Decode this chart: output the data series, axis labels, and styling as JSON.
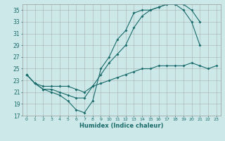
{
  "title": "",
  "xlabel": "Humidex (Indice chaleur)",
  "bg_color": "#cce8e8",
  "grid_color": "#999999",
  "line_color": "#1a6b6b",
  "xlim": [
    -0.5,
    23.5
  ],
  "ylim": [
    17,
    36
  ],
  "xticks": [
    0,
    1,
    2,
    3,
    4,
    5,
    6,
    7,
    8,
    9,
    10,
    11,
    12,
    13,
    14,
    15,
    16,
    17,
    18,
    19,
    20,
    21,
    22,
    23
  ],
  "yticks": [
    17,
    19,
    21,
    23,
    25,
    27,
    29,
    31,
    33,
    35
  ],
  "line1_x": [
    0,
    1,
    2,
    3,
    4,
    5,
    6,
    7,
    8,
    9,
    10,
    11,
    12,
    13,
    14,
    15,
    16,
    17,
    18,
    19,
    20,
    21
  ],
  "line1_y": [
    24,
    22.5,
    21.5,
    21,
    20.5,
    19.5,
    18,
    17.5,
    19.5,
    25,
    27,
    30,
    31.5,
    34.5,
    35,
    35,
    35.5,
    36,
    36,
    35,
    33,
    29
  ],
  "line2_x": [
    0,
    1,
    2,
    3,
    4,
    5,
    6,
    7,
    8,
    9,
    10,
    11,
    12,
    13,
    14,
    15,
    16,
    17,
    18,
    19,
    20,
    21
  ],
  "line2_y": [
    24,
    22.5,
    21.5,
    21.5,
    21,
    20.5,
    20,
    20,
    22,
    24,
    26,
    27.5,
    29,
    32,
    34,
    35,
    35.5,
    36,
    36,
    36,
    35,
    33
  ],
  "line3_x": [
    0,
    1,
    2,
    3,
    4,
    5,
    6,
    7,
    8,
    9,
    10,
    11,
    12,
    13,
    14,
    15,
    16,
    17,
    18,
    19,
    20,
    21,
    22,
    23
  ],
  "line3_y": [
    24,
    22.5,
    22,
    22,
    22,
    22,
    21.5,
    21,
    22,
    22.5,
    23,
    23.5,
    24,
    24.5,
    25,
    25,
    25.5,
    25.5,
    25.5,
    25.5,
    26,
    25.5,
    25,
    25.5
  ]
}
